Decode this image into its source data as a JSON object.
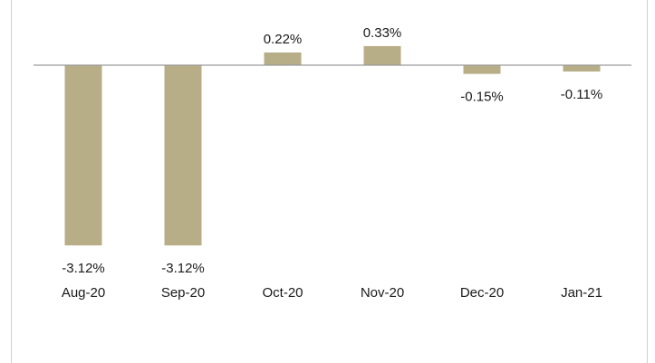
{
  "chart_data": {
    "type": "bar",
    "title": "",
    "xlabel": "",
    "ylabel": "",
    "categories": [
      "Aug-20",
      "Sep-20",
      "Oct-20",
      "Nov-20",
      "Dec-20",
      "Jan-21"
    ],
    "values": [
      -3.12,
      -3.12,
      0.22,
      0.33,
      -0.15,
      -0.11
    ],
    "data_labels": [
      "-3.12%",
      "-3.12%",
      "0.22%",
      "0.33%",
      "-0.15%",
      "-0.11%"
    ],
    "ylim": [
      -3.3,
      0.5
    ],
    "grid": false,
    "legend": "none",
    "bar_color": "#b7ad86",
    "axis_color": "#9a9a9a"
  }
}
